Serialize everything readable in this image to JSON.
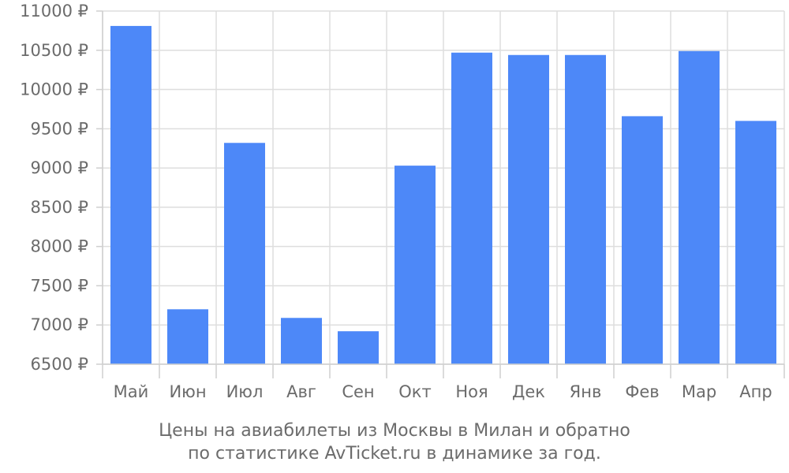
{
  "chart_data": {
    "type": "bar",
    "categories": [
      "Май",
      "Июн",
      "Июл",
      "Авг",
      "Сен",
      "Окт",
      "Ноя",
      "Дек",
      "Янв",
      "Фев",
      "Мар",
      "Апр"
    ],
    "values": [
      10810,
      7200,
      9320,
      7090,
      6920,
      9030,
      10470,
      10440,
      10440,
      9660,
      10490,
      9600
    ],
    "ylim": [
      6500,
      11000
    ],
    "yticks": [
      6500,
      7000,
      7500,
      8000,
      8500,
      9000,
      9500,
      10000,
      10500,
      11000
    ],
    "y_unit": "₽",
    "grid": true,
    "bar_color": "#4d88f8",
    "title": "",
    "xlabel": "",
    "ylabel": ""
  },
  "caption": {
    "line1": "Цены на авиабилеты из Москвы в Милан и обратно",
    "line2": "по статистике AvTicket.ru в динамике за год."
  }
}
